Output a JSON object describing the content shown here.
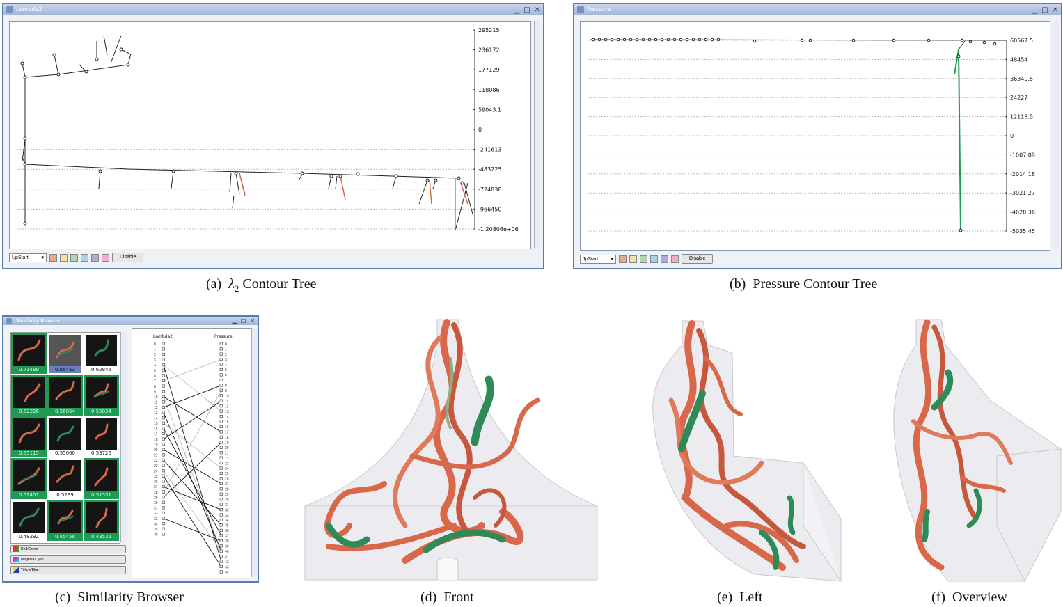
{
  "panels": {
    "lambda2": {
      "title": "Lambda2",
      "dropdown": "UpStart",
      "disable": "Disable",
      "caption_prefix": "(a)",
      "caption_symbol": "λ",
      "caption_sub": "2",
      "caption_text": "Contour Tree",
      "ticks": [
        "295215",
        "236172",
        "177129",
        "118086",
        "59043.1",
        "0",
        "-241613",
        "-483225",
        "-724838",
        "-966450",
        "-1.20806e+06"
      ]
    },
    "pressure": {
      "title": "Pressure",
      "dropdown": "JpStart",
      "disable": "Disable",
      "caption_prefix": "(b)",
      "caption_text": "Pressure Contour Tree",
      "ticks": [
        "60567.5",
        "48454",
        "36340.5",
        "24227",
        "12113.5",
        "0",
        "-1007.09",
        "-2014.18",
        "-3021.27",
        "-4028.36",
        "-5035.45"
      ]
    },
    "similarity": {
      "title": "Similarity Browser",
      "col_left": "Lambda2",
      "col_right": "Pressure",
      "scores": [
        "0.71489",
        "0.65453",
        "0.62846",
        "0.62226",
        "0.56864",
        "0.55834",
        "0.55115",
        "0.55060",
        "0.53726",
        "0.52451",
        "0.5299",
        "0.51531",
        "0.48292",
        "0.45458",
        "0.43522"
      ],
      "highlighted": [
        true,
        false,
        false,
        true,
        true,
        true,
        true,
        false,
        false,
        true,
        false,
        true,
        false,
        true,
        true
      ],
      "selected": [
        false,
        true,
        false,
        false,
        false,
        false,
        false,
        false,
        false,
        false,
        false,
        false,
        false,
        false,
        false
      ],
      "color_buttons": [
        "Red/Green",
        "Magenta/Cyan",
        "Yellow/Blue"
      ],
      "caption_prefix": "(c)",
      "caption_text": "Similarity Browser"
    },
    "front": {
      "caption_prefix": "(d)",
      "caption_text": "Front"
    },
    "left": {
      "caption_prefix": "(e)",
      "caption_text": "Left"
    },
    "overview": {
      "caption_prefix": "(f)",
      "caption_text": "Overview"
    }
  },
  "colors": {
    "swatches": [
      "#e8a898",
      "#f0e4a0",
      "#b0d8b0",
      "#a8d4e8",
      "#b0a8d8",
      "#f0b0cc"
    ],
    "vortex_red": "#d9674a",
    "vortex_green": "#2e8b57",
    "highlight_green": "#1f9a55",
    "window_border": "#5b7ab4"
  }
}
